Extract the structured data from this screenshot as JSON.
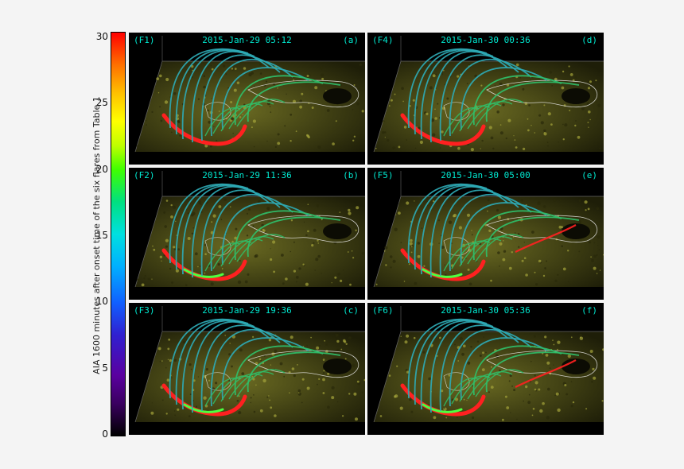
{
  "colorbar": {
    "label": "AIA 1600 minutes after onset time of the six flares from Table 1",
    "ticks": [
      "30",
      "25",
      "20",
      "15",
      "10",
      "5",
      "0"
    ],
    "tick_values": [
      30,
      25,
      20,
      15,
      10,
      5,
      0
    ],
    "range": [
      0,
      30
    ]
  },
  "panels": [
    {
      "id": "(F1)",
      "date": "2015-Jan-29 05:12",
      "letter": "(a)"
    },
    {
      "id": "(F4)",
      "date": "2015-Jan-30 00:36",
      "letter": "(d)"
    },
    {
      "id": "(F2)",
      "date": "2015-Jan-29 11:36",
      "letter": "(b)"
    },
    {
      "id": "(F5)",
      "date": "2015-Jan-30 05:00",
      "letter": "(e)"
    },
    {
      "id": "(F3)",
      "date": "2015-Jan-29 19:36",
      "letter": "(c)"
    },
    {
      "id": "(F6)",
      "date": "2015-Jan-30 05:36",
      "letter": "(f)"
    }
  ],
  "colors": {
    "loops": "#2ea9b4",
    "loops_green": "#2fbf6a",
    "ribbon_red": "#ff2020",
    "ribbon_green": "#4cff40",
    "contour": "#e8e8e8",
    "label_text": "#00e8d0"
  }
}
